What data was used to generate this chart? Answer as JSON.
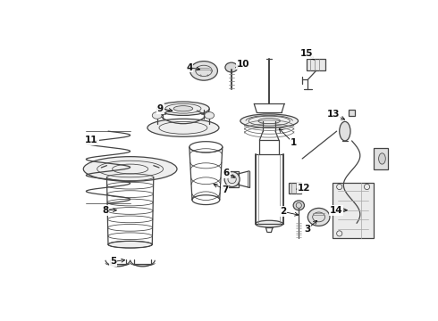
{
  "bg_color": "#ffffff",
  "line_color": "#444444",
  "label_color": "#111111",
  "lw": 0.9,
  "lw_thin": 0.55,
  "lw_bold": 1.4
}
